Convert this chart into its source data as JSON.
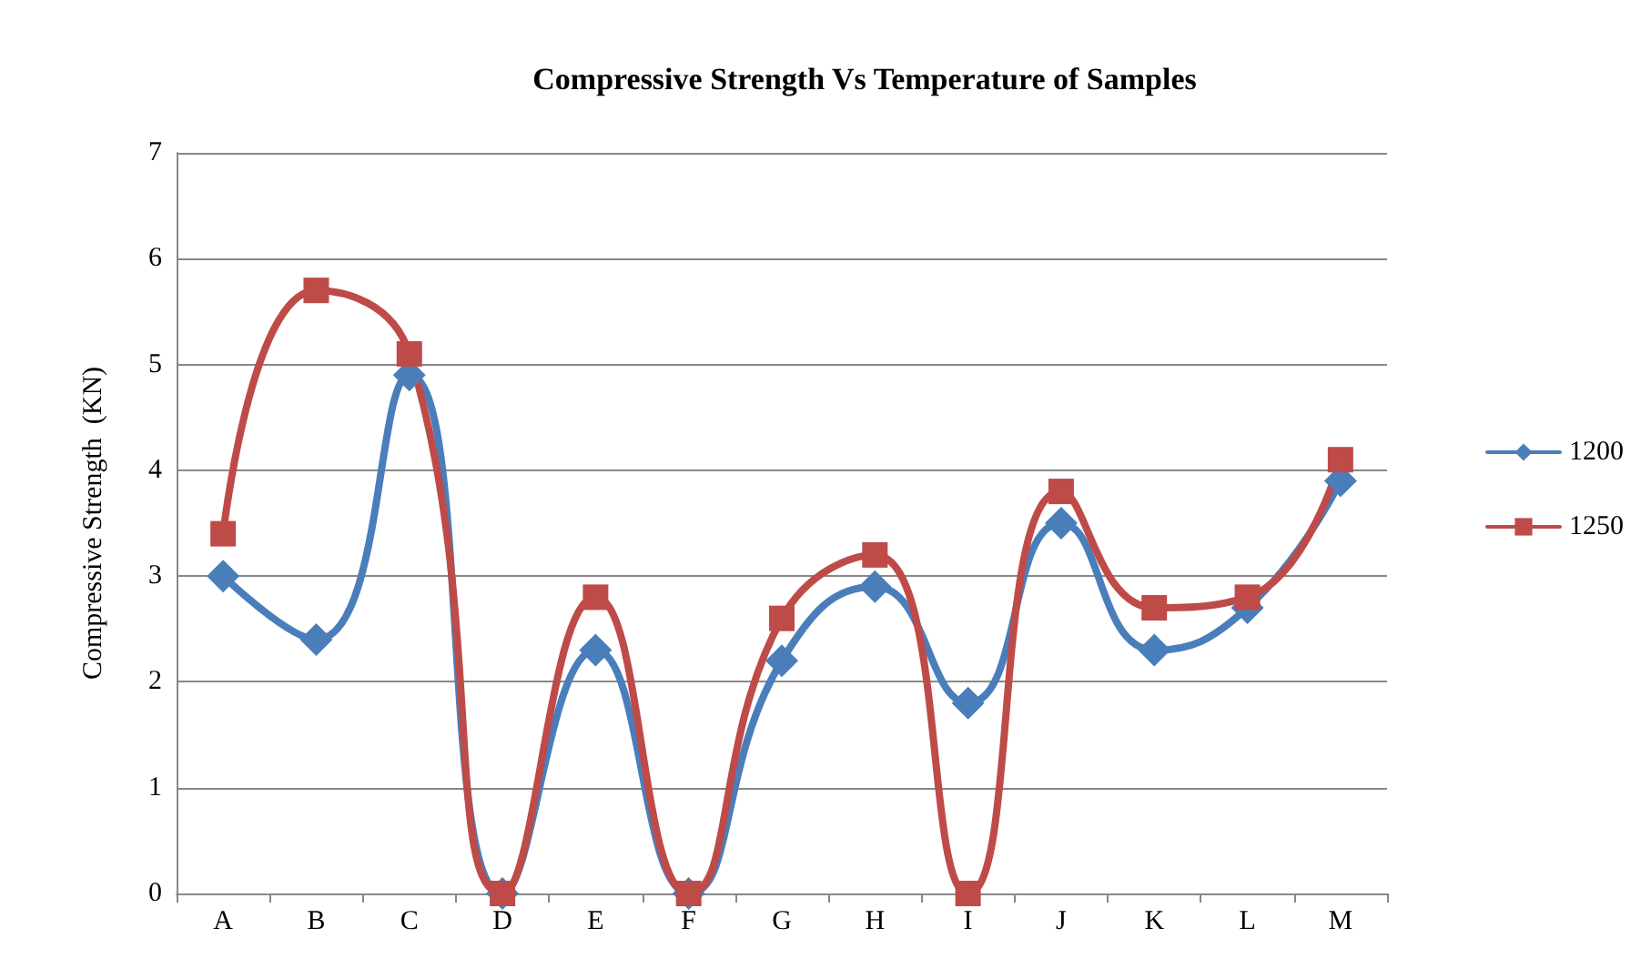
{
  "chart_data": {
    "type": "line",
    "title": "Compressive Strength Vs Temperature of Samples",
    "ylabel": "Compressive Strength  (KN)",
    "categories": [
      "A",
      "B",
      "C",
      "D",
      "E",
      "F",
      "G",
      "H",
      "I",
      "J",
      "K",
      "L",
      "M"
    ],
    "series": [
      {
        "name": "1200",
        "color": "#4a7ebb",
        "marker": "diamond",
        "values": [
          3,
          2.4,
          4.9,
          0,
          2.3,
          0,
          2.2,
          2.9,
          1.8,
          3.5,
          2.3,
          2.7,
          3.9
        ]
      },
      {
        "name": "1250",
        "color": "#be4b48",
        "marker": "square",
        "values": [
          3.4,
          5.7,
          5.1,
          0,
          2.8,
          0,
          2.6,
          3.2,
          0,
          3.8,
          2.7,
          2.8,
          4.1
        ]
      }
    ],
    "ylim": [
      0,
      7
    ],
    "yticks": [
      0,
      1,
      2,
      3,
      4,
      5,
      6,
      7
    ],
    "grid": "y",
    "legend": "right",
    "line_style": "solid"
  }
}
